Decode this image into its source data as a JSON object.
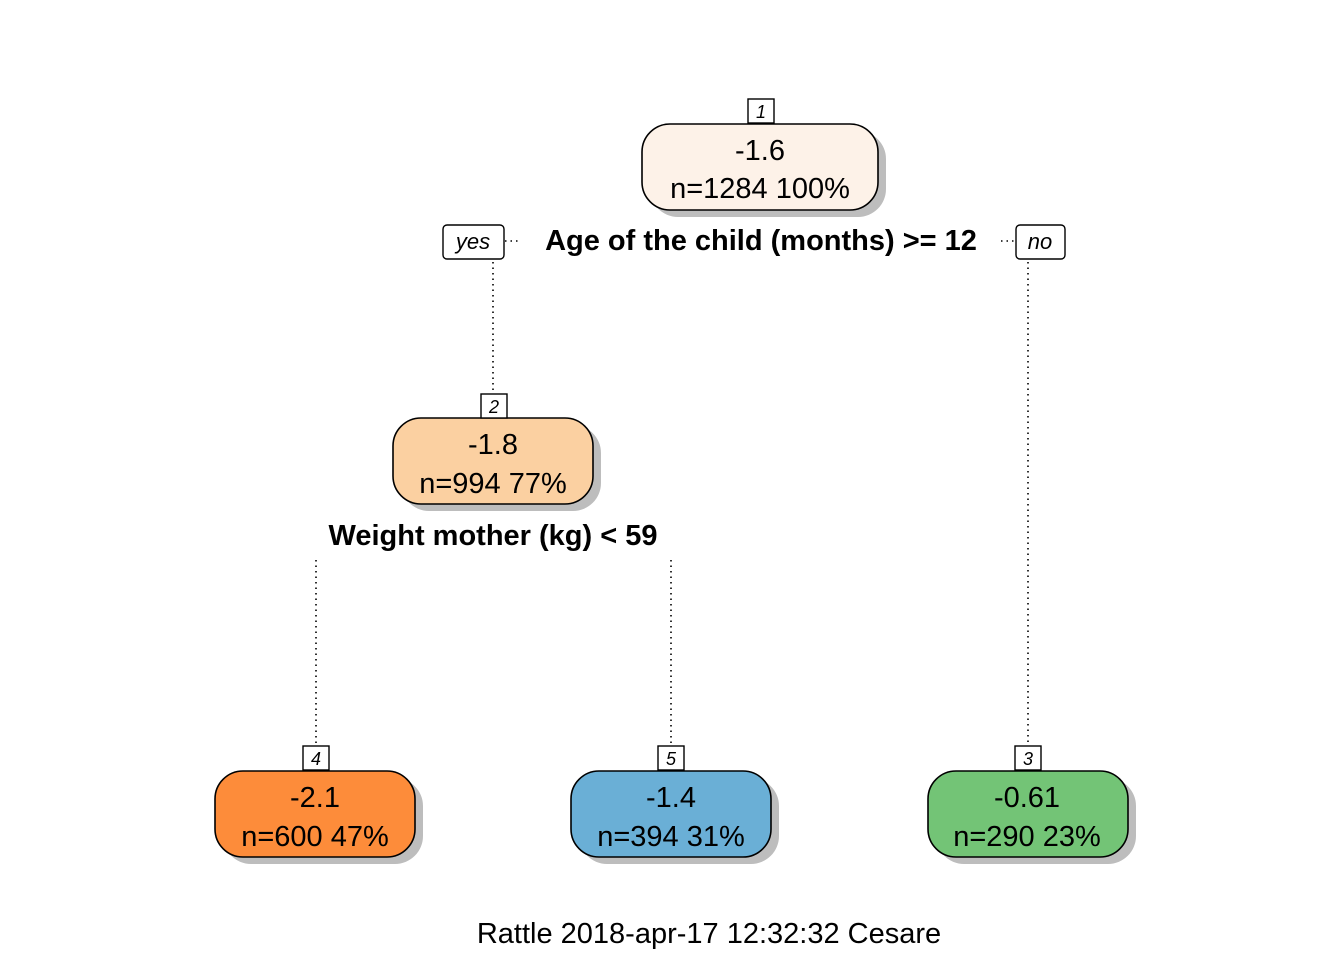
{
  "nodes": [
    {
      "id": "1",
      "value": "-1.6",
      "stats": "n=1284  100%",
      "fill": "#fdf2e8"
    },
    {
      "id": "2",
      "value": "-1.8",
      "stats": "n=994  77%",
      "fill": "#fbd0a1"
    },
    {
      "id": "4",
      "value": "-2.1",
      "stats": "n=600  47%",
      "fill": "#fd8c3a"
    },
    {
      "id": "5",
      "value": "-1.4",
      "stats": "n=394  31%",
      "fill": "#6aafd6"
    },
    {
      "id": "3",
      "value": "-0.61",
      "stats": "n=290  23%",
      "fill": "#73c476"
    }
  ],
  "splits": {
    "root": "Age of the child (months) >= 12",
    "node2": "Weight mother (kg) < 59"
  },
  "branch_labels": {
    "yes": "yes",
    "no": "no"
  },
  "footer": "Rattle 2018-apr-17 12:32:32 Cesare"
}
